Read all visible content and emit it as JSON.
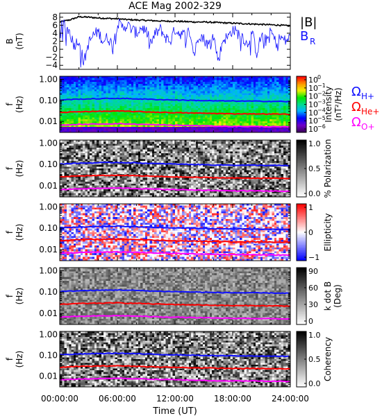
{
  "chart_data": {
    "type": "spectrogram",
    "title": "ACE Mag 2002-329",
    "xlabel": "Time (UT)",
    "x_ticks": [
      "00:00:00",
      "06:00:00",
      "12:00:00",
      "18:00:00",
      "24:00:00"
    ],
    "x_range_hours": [
      0,
      24
    ],
    "panels": [
      {
        "id": "field",
        "type": "line",
        "ylabel_top": "B",
        "ylabel_unit": "(nT)",
        "ylim": [
          -5,
          9
        ],
        "y_ticks": [
          8,
          6,
          4,
          2,
          0,
          -2,
          -4
        ],
        "legend": {
          "placement": "right",
          "entries": [
            {
              "label": "|B|",
              "color": "#000000"
            },
            {
              "label": "B",
              "sub": "R",
              "color": "#1010ff"
            }
          ]
        },
        "series": [
          {
            "name": "|B|",
            "color": "#000000",
            "x": [
              0,
              1,
              2,
              3,
              4,
              5,
              6,
              7,
              8,
              9,
              10,
              11,
              12,
              13,
              14,
              15,
              16,
              17,
              18,
              19,
              20,
              21,
              22,
              23,
              24
            ],
            "values": [
              6.8,
              7.3,
              8.1,
              8.0,
              7.8,
              7.7,
              7.6,
              7.4,
              7.3,
              7.2,
              7.1,
              7.0,
              7.0,
              6.9,
              6.8,
              6.8,
              6.7,
              6.6,
              6.5,
              6.4,
              6.3,
              6.2,
              6.1,
              6.0,
              5.8
            ]
          },
          {
            "name": "B_R",
            "color": "#1010ff",
            "x": [
              0,
              0.5,
              1,
              1.5,
              2,
              2.5,
              3,
              3.5,
              4,
              4.5,
              5,
              5.5,
              6,
              6.5,
              7,
              7.5,
              8,
              8.5,
              9,
              9.5,
              10,
              10.5,
              11,
              11.5,
              12,
              12.5,
              13,
              13.5,
              14,
              14.5,
              15,
              15.5,
              16,
              16.5,
              17,
              17.5,
              18,
              18.5,
              19,
              19.5,
              20,
              20.5,
              21,
              21.5,
              22,
              22.5,
              23,
              23.5,
              24
            ],
            "values": [
              5.5,
              6.0,
              4.5,
              1.0,
              2.5,
              -3.5,
              1.5,
              3.5,
              4.5,
              2.0,
              3.0,
              1.0,
              6.5,
              5.5,
              6.0,
              5.0,
              4.0,
              5.5,
              4.5,
              1.5,
              4.0,
              5.0,
              3.0,
              2.0,
              5.0,
              4.0,
              3.5,
              4.5,
              -1.5,
              4.0,
              2.5,
              1.0,
              3.5,
              -3.0,
              2.5,
              3.0,
              5.0,
              4.0,
              3.5,
              1.0,
              4.5,
              -1.0,
              3.5,
              2.0,
              4.5,
              1.5,
              3.0,
              2.0,
              3.0
            ]
          }
        ]
      },
      {
        "id": "intensity",
        "type": "heatmap",
        "ylabel_top": "f",
        "ylabel_unit": "(Hz)",
        "ylim": [
          0.003,
          1.4
        ],
        "y_scale": "log",
        "y_ticks": [
          "1.00",
          "0.10",
          "0.01"
        ],
        "colorbar": {
          "colormap": "rainbow",
          "label": "Intensity",
          "unit": "(nT²/Hz)",
          "tick_labels": [
            {
              "base": "10",
              "exp": "0"
            },
            {
              "base": "10",
              "exp": "-1"
            },
            {
              "base": "10",
              "exp": "-2"
            },
            {
              "base": "10",
              "exp": "-3"
            },
            {
              "base": "10",
              "exp": "-4"
            },
            {
              "base": "10",
              "exp": "-5"
            },
            {
              "base": "10",
              "exp": "-6"
            }
          ]
        },
        "legend": {
          "placement": "right",
          "entries": [
            {
              "label": "Ω",
              "sub": "H+",
              "color": "#1010ff"
            },
            {
              "label": "Ω",
              "sub": "He+",
              "color": "#ff0000"
            },
            {
              "label": "Ω",
              "sub": "O+",
              "color": "#ff00ff"
            }
          ]
        }
      },
      {
        "id": "polarization",
        "type": "heatmap",
        "ylabel_top": "f",
        "ylabel_unit": "(Hz)",
        "ylim": [
          0.003,
          1.4
        ],
        "y_scale": "log",
        "y_ticks": [
          "1.00",
          "0.10",
          "0.01"
        ],
        "colorbar": {
          "colormap": "gray",
          "label": "% Polarization",
          "unit": "",
          "tick_labels": [
            "1.0",
            "0.5",
            "0.0"
          ]
        }
      },
      {
        "id": "ellipticity",
        "type": "heatmap",
        "ylabel_top": "f",
        "ylabel_unit": "(Hz)",
        "ylim": [
          0.003,
          1.4
        ],
        "y_scale": "log",
        "y_ticks": [
          "1.00",
          "0.10",
          "0.01"
        ],
        "colorbar": {
          "colormap": "bwr",
          "label": "Ellipticity",
          "unit": "",
          "tick_labels": [
            "1",
            "0",
            "−1"
          ]
        }
      },
      {
        "id": "kdotb",
        "type": "heatmap",
        "ylabel_top": "f",
        "ylabel_unit": "(Hz)",
        "ylim": [
          0.003,
          1.4
        ],
        "y_scale": "log",
        "y_ticks": [
          "1.00",
          "0.10",
          "0.01"
        ],
        "colorbar": {
          "colormap": "gray",
          "label": "k dot B",
          "unit": "(Deg)",
          "tick_labels": [
            "90",
            "60",
            "30",
            "0"
          ]
        }
      },
      {
        "id": "coherency",
        "type": "heatmap",
        "ylabel_top": "f",
        "ylabel_unit": "(Hz)",
        "ylim": [
          0.003,
          1.4
        ],
        "y_scale": "log",
        "y_ticks": [
          "1.00",
          "0.10",
          "0.01"
        ],
        "colorbar": {
          "colormap": "gray",
          "label": "Coherency",
          "unit": "",
          "tick_labels": [
            "1.0",
            "0.5",
            "0.0"
          ]
        }
      }
    ],
    "gyro_lines": {
      "x_hours": [
        0,
        2,
        4,
        6,
        8,
        10,
        12,
        14,
        16,
        18,
        20,
        22,
        24
      ],
      "H+": [
        0.105,
        0.115,
        0.12,
        0.125,
        0.118,
        0.11,
        0.105,
        0.1,
        0.095,
        0.093,
        0.092,
        0.09,
        0.088
      ],
      "He+": [
        0.026,
        0.029,
        0.03,
        0.031,
        0.0295,
        0.0275,
        0.026,
        0.025,
        0.024,
        0.023,
        0.023,
        0.0225,
        0.022
      ],
      "O+": [
        0.0066,
        0.0072,
        0.0075,
        0.0078,
        0.0074,
        0.0069,
        0.0066,
        0.0063,
        0.006,
        0.0058,
        0.0058,
        0.0056,
        0.0055
      ]
    }
  }
}
